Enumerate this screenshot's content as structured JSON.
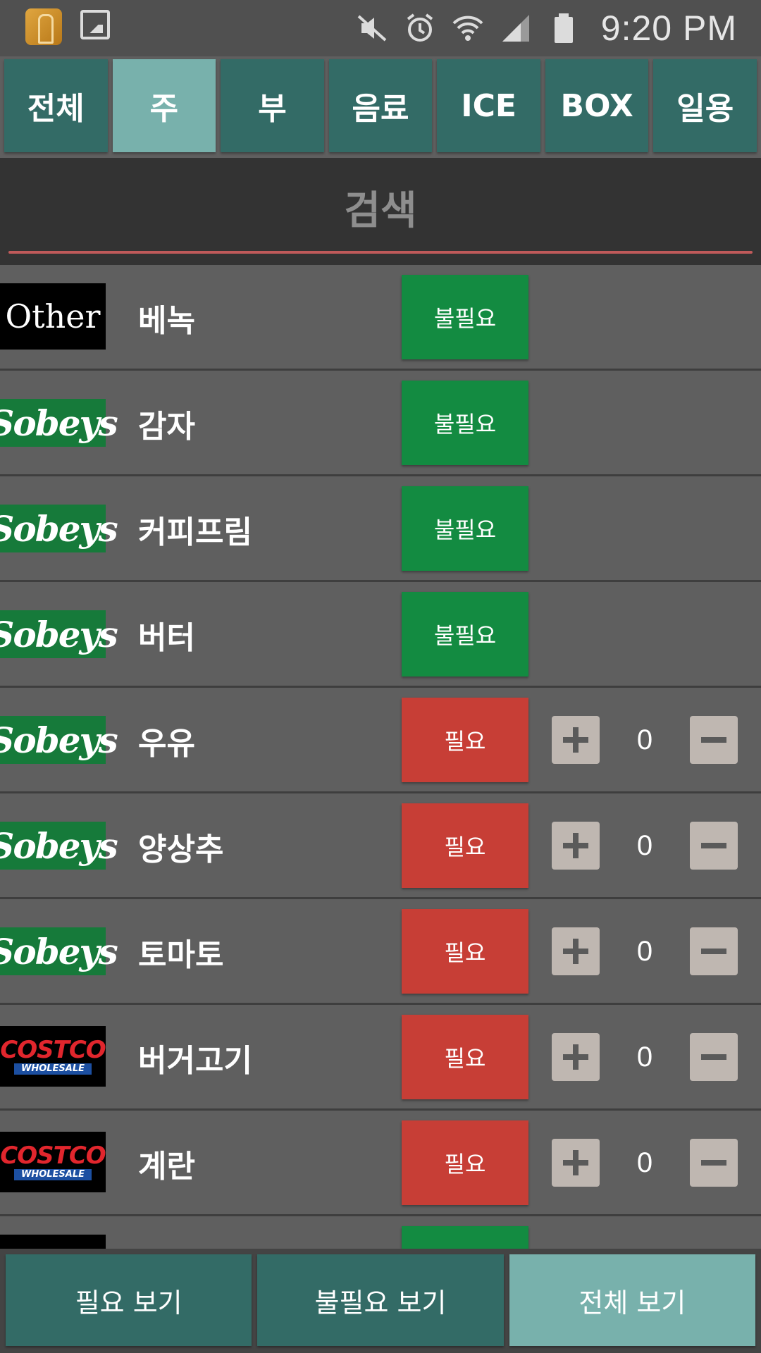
{
  "status_bar": {
    "time": "9:20 PM",
    "icons": [
      "app-icon",
      "gallery-icon",
      "mute-icon",
      "alarm-icon",
      "wifi-icon",
      "signal-icon",
      "battery-icon"
    ]
  },
  "tabs": [
    {
      "label": "전체",
      "active": false
    },
    {
      "label": "주",
      "active": true
    },
    {
      "label": "부",
      "active": false
    },
    {
      "label": "음료",
      "active": false
    },
    {
      "label": "ICE",
      "active": false
    },
    {
      "label": "BOX",
      "active": false
    },
    {
      "label": "일용",
      "active": false
    }
  ],
  "search": {
    "label": "검색"
  },
  "items": [
    {
      "store": "other",
      "store_label": "Other",
      "name": "베녹",
      "status": "불필요",
      "needed": false
    },
    {
      "store": "sobeys",
      "store_label": "Sobeys",
      "name": "감자",
      "status": "불필요",
      "needed": false
    },
    {
      "store": "sobeys",
      "store_label": "Sobeys",
      "name": "커피프림",
      "status": "불필요",
      "needed": false
    },
    {
      "store": "sobeys",
      "store_label": "Sobeys",
      "name": "버터",
      "status": "불필요",
      "needed": false
    },
    {
      "store": "sobeys",
      "store_label": "Sobeys",
      "name": "우유",
      "status": "필요",
      "needed": true,
      "qty": "0"
    },
    {
      "store": "sobeys",
      "store_label": "Sobeys",
      "name": "양상추",
      "status": "필요",
      "needed": true,
      "qty": "0"
    },
    {
      "store": "sobeys",
      "store_label": "Sobeys",
      "name": "토마토",
      "status": "필요",
      "needed": true,
      "qty": "0"
    },
    {
      "store": "costco",
      "store_label": "COSTCO",
      "store_sub": "WHOLESALE",
      "name": "버거고기",
      "status": "필요",
      "needed": true,
      "qty": "0"
    },
    {
      "store": "costco",
      "store_label": "COSTCO",
      "store_sub": "WHOLESALE",
      "name": "계란",
      "status": "필요",
      "needed": true,
      "qty": "0"
    }
  ],
  "bottom": {
    "needed_label": "필요 보기",
    "unneeded_label": "불필요 보기",
    "all_label": "전체 보기"
  },
  "colors": {
    "tab": "#336b66",
    "tab_active": "#78b1ac",
    "unneeded": "#138b41",
    "needed": "#c73e36",
    "search_underline": "#c05a5a"
  }
}
